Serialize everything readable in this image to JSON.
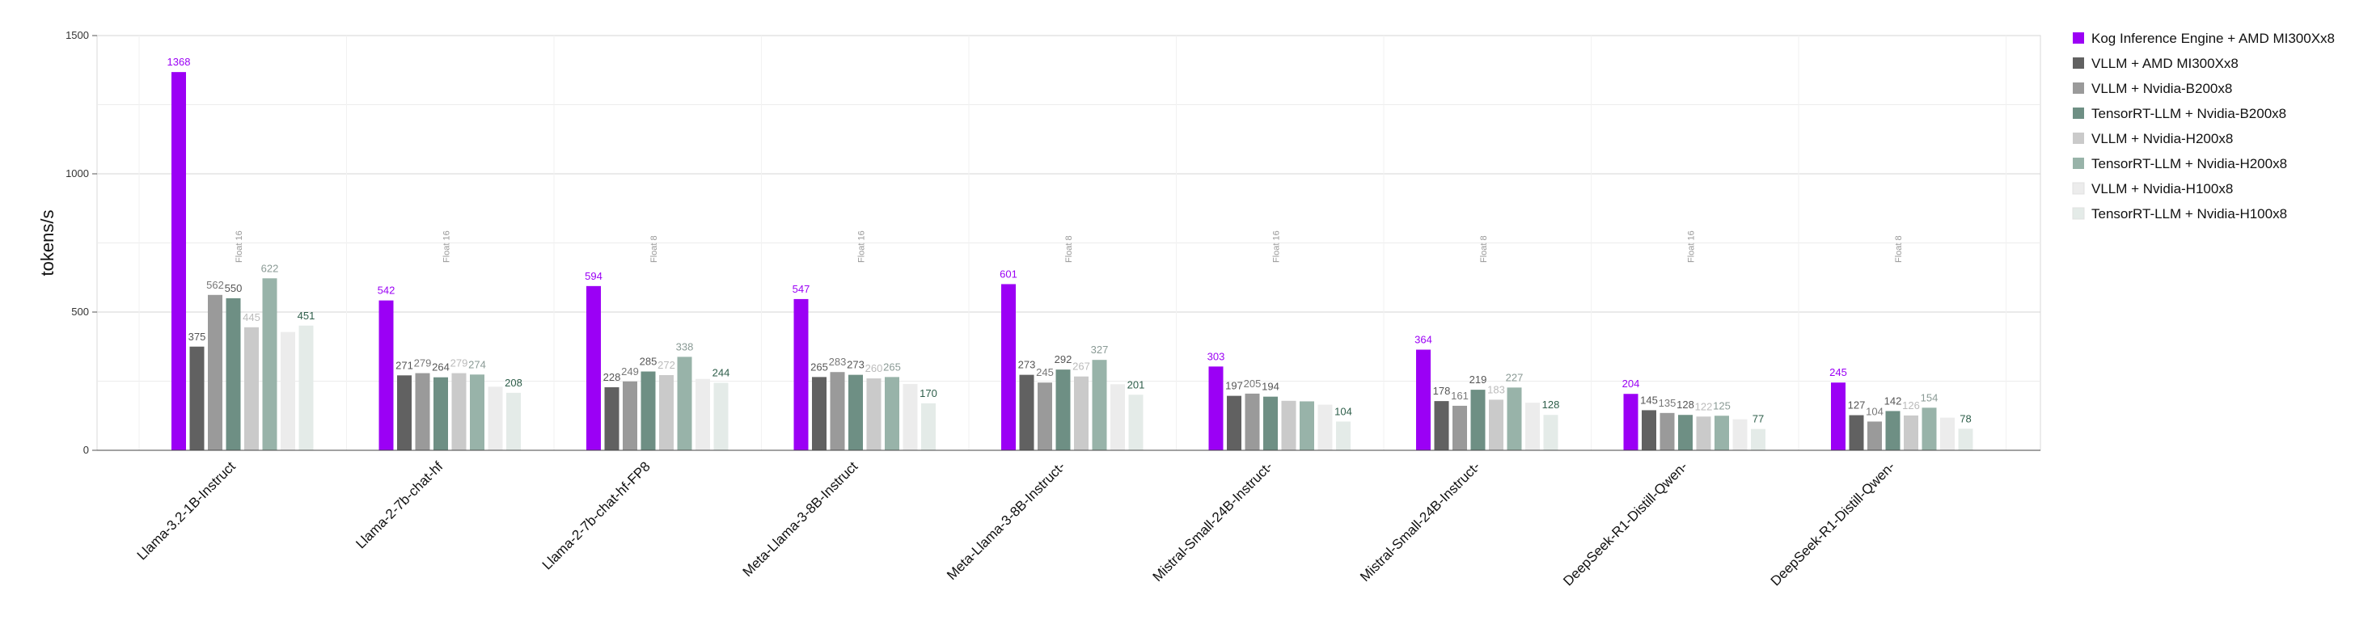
{
  "chart_data": {
    "type": "bar",
    "ylabel": "tokens/s",
    "xlabel": "",
    "ylim": [
      0,
      1500
    ],
    "yticks": [
      0,
      500,
      1000,
      1500
    ],
    "grid": true,
    "legend_position": "right",
    "categories": [
      "Llama-3.2-1B-Instruct",
      "Llama-2-7b-chat-hf",
      "Llama-2-7b-chat-hf-FP8",
      "Meta-Llama-3-8B-Instruct",
      "Meta-Llama-3-8B-Instruct-",
      "Mistral-Small-24B-Instruct-",
      "Mistral-Small-24B-Instruct-",
      "DeepSeek-R1-Distill-Qwen-",
      "DeepSeek-R1-Distill-Qwen-"
    ],
    "precision_annotations": [
      "Float 16",
      "Float 16",
      "Float 8",
      "Float 16",
      "Float 8",
      "Float 16",
      "Float 8",
      "Float 16",
      "Float 8"
    ],
    "series": [
      {
        "name": "Kog Inference Engine + AMD MI300Xx8",
        "color": "#9b00f5",
        "label_color": "#9b00f5",
        "values": [
          1368,
          542,
          594,
          547,
          601,
          303,
          364,
          204,
          245
        ]
      },
      {
        "name": "VLLM + AMD MI300Xx8",
        "color": "#616161",
        "label_color": "#555555",
        "values": [
          375,
          271,
          228,
          265,
          273,
          197,
          178,
          145,
          127
        ]
      },
      {
        "name": "VLLM + Nvidia-B200x8",
        "color": "#9a9a9a",
        "label_color": "#777777",
        "values": [
          562,
          279,
          249,
          283,
          245,
          205,
          161,
          135,
          104
        ]
      },
      {
        "name": "TensorRT-LLM + Nvidia-B200x8",
        "color": "#6e8f84",
        "label_color": "#555555",
        "values": [
          550,
          264,
          285,
          273,
          292,
          194,
          219,
          128,
          142
        ]
      },
      {
        "name": "VLLM + Nvidia-H200x8",
        "color": "#cacaca",
        "label_color": "#bbbbbb",
        "values": [
          445,
          279,
          272,
          260,
          267,
          179,
          183,
          122,
          126
        ]
      },
      {
        "name": "TensorRT-LLM + Nvidia-H200x8",
        "color": "#98b3a9",
        "label_color": "#8a9a95",
        "values": [
          622,
          274,
          338,
          265,
          327,
          177,
          227,
          125,
          154
        ]
      },
      {
        "name": "VLLM + Nvidia-H100x8",
        "color": "#ececec",
        "label_color": "#dddddd",
        "values": [
          428,
          230,
          258,
          240,
          239,
          165,
          172,
          112,
          118
        ]
      },
      {
        "name": "TensorRT-LLM + Nvidia-H100x8",
        "color": "#e4ebe8",
        "label_color": "#2e5e4a",
        "values": [
          451,
          208,
          244,
          170,
          201,
          104,
          128,
          77,
          78
        ]
      }
    ],
    "hidden_value_labels": [
      [
        6
      ],
      [
        6
      ],
      [
        6
      ],
      [
        6
      ],
      [
        6
      ],
      [
        4,
        5,
        6
      ],
      [
        6
      ],
      [
        6
      ],
      [
        6
      ]
    ]
  }
}
